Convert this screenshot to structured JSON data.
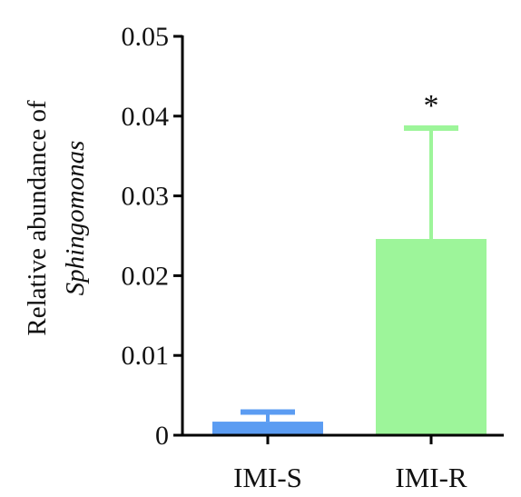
{
  "chart_data": {
    "type": "bar",
    "categories": [
      "IMI-S",
      "IMI-R"
    ],
    "values": [
      0.0017,
      0.0246
    ],
    "error_upper": [
      0.0029,
      0.0385
    ],
    "annotations": [
      "",
      "*"
    ],
    "colors": [
      "#5b9cf2",
      "#9df59a"
    ],
    "error_colors": [
      "#5b9cf2",
      "#9df59a"
    ],
    "ylabel_lines": [
      "Relative abundance of",
      "Sphingomonas"
    ],
    "ylim": [
      0,
      0.05
    ],
    "yticks": [
      0,
      0.01,
      0.02,
      0.03,
      0.04,
      0.05
    ],
    "ytick_labels": [
      "0",
      "0.01",
      "0.02",
      "0.03",
      "0.04",
      "0.05"
    ],
    "grid": false,
    "legend": "none"
  }
}
